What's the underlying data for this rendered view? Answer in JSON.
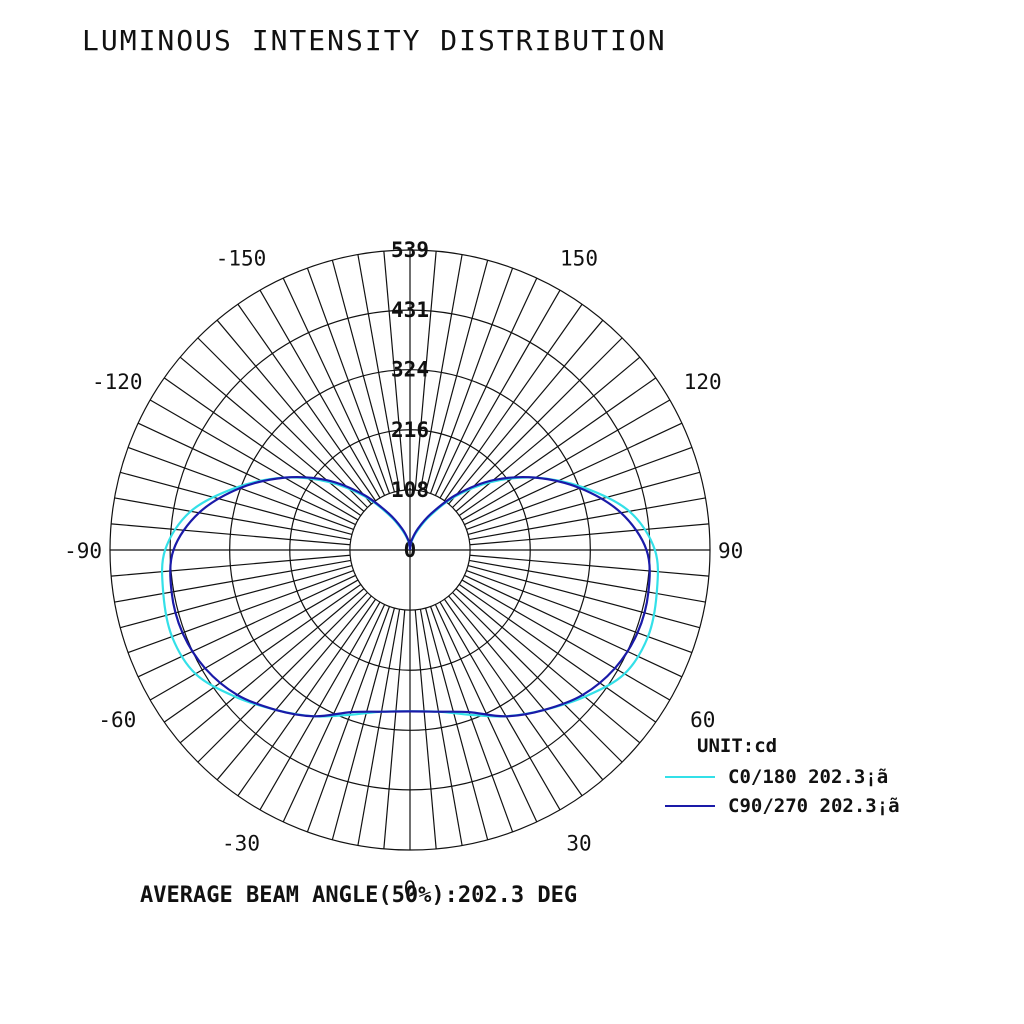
{
  "title": "LUMINOUS INTENSITY DISTRIBUTION",
  "footer": "AVERAGE BEAM ANGLE(50%):202.3 DEG",
  "legend": {
    "unit": "UNIT:cd",
    "items": [
      {
        "label": "C0/180 202.3¡ã",
        "color": "#33e0e8"
      },
      {
        "label": "C90/270 202.3¡ã",
        "color": "#1a1aa8"
      }
    ]
  },
  "chart_data": {
    "type": "polar",
    "radial_max": 539,
    "radial_ticks": [
      108,
      216,
      324,
      431,
      539
    ],
    "radial_tick_labels": [
      "0",
      "108",
      "216",
      "324",
      "431",
      "539"
    ],
    "angle_labels": [
      {
        "deg": 0,
        "text": "0"
      },
      {
        "deg": 30,
        "text": "30"
      },
      {
        "deg": -30,
        "text": "-30"
      },
      {
        "deg": 60,
        "text": "60"
      },
      {
        "deg": -60,
        "text": "-60"
      },
      {
        "deg": 90,
        "text": "90"
      },
      {
        "deg": -90,
        "text": "-90"
      },
      {
        "deg": 120,
        "text": "120"
      },
      {
        "deg": -120,
        "text": "-120"
      },
      {
        "deg": 150,
        "text": "150"
      },
      {
        "deg": -150,
        "text": "-150"
      }
    ],
    "gamma": [
      0,
      10,
      20,
      30,
      40,
      50,
      60,
      70,
      80,
      90,
      100,
      110,
      120,
      130,
      140,
      150,
      160,
      170,
      175,
      180
    ],
    "series": [
      {
        "name": "C0/180 202.3¡ã",
        "color": "#33e0e8",
        "values": [
          290,
          295,
          315,
          345,
          375,
          410,
          445,
          455,
          450,
          440,
          400,
          330,
          260,
          190,
          125,
          70,
          35,
          15,
          5,
          0
        ]
      },
      {
        "name": "C90/270 202.3¡ã",
        "color": "#1a1aa8",
        "values": [
          290,
          295,
          310,
          345,
          375,
          405,
          425,
          435,
          435,
          425,
          385,
          325,
          260,
          195,
          130,
          75,
          40,
          18,
          6,
          0
        ]
      }
    ]
  }
}
